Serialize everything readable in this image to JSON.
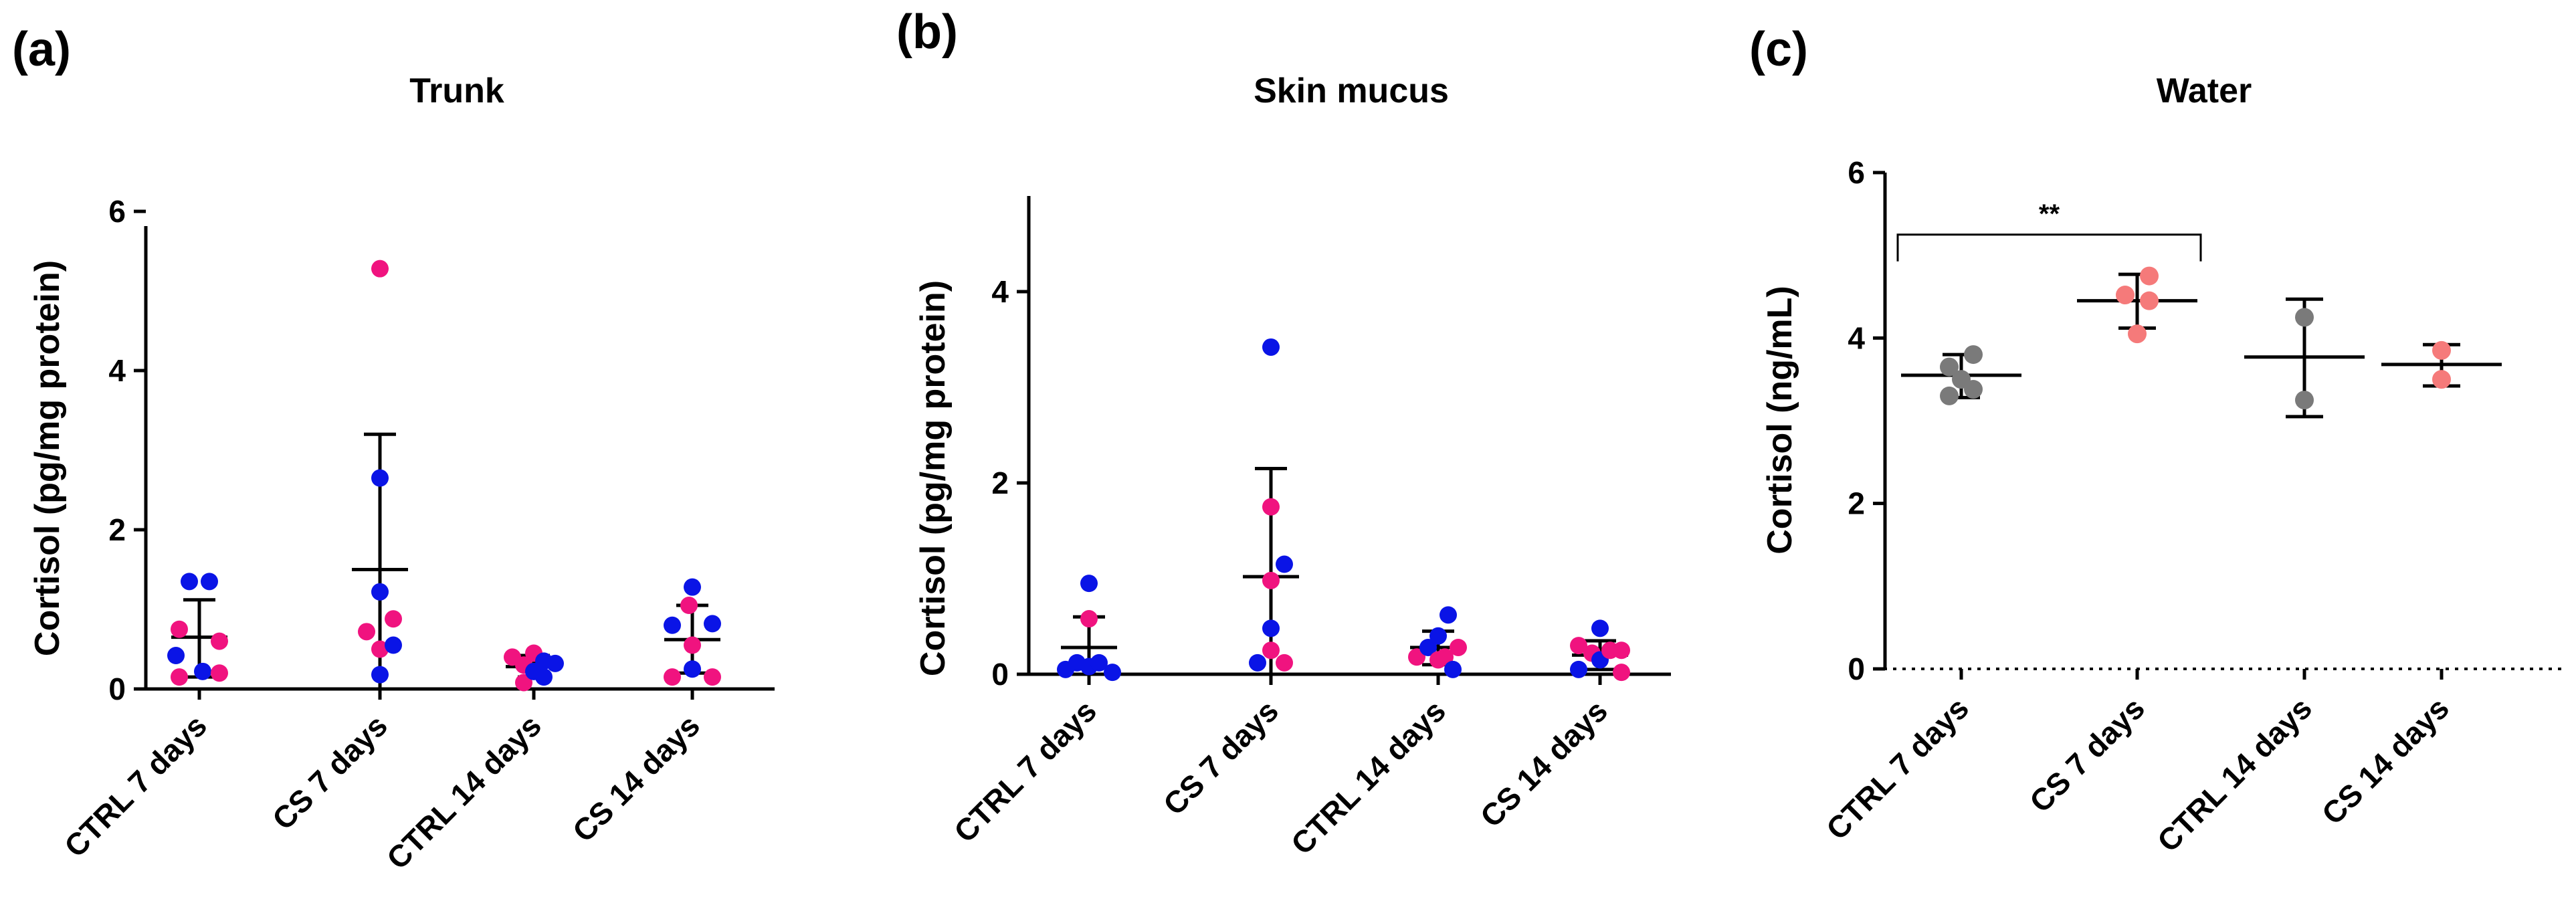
{
  "colors": {
    "blue": "#0a14e6",
    "magenta": "#f0137f",
    "gray": "#7a7a7a",
    "salmon": "#f57a7a",
    "axis": "#000000"
  },
  "chart_data": [
    {
      "type": "scatter",
      "panel_label": "(a)",
      "title": "Trunk",
      "xlabel": "",
      "ylabel": "Cortisol (pg/mg protein)",
      "ylim": [
        0,
        6
      ],
      "yticks": [
        0,
        2,
        4,
        6
      ],
      "yticks_text": [
        "0",
        "2",
        "4",
        "6"
      ],
      "categories": [
        "CTRL 7 days",
        "CS 7 days",
        "CTRL 14 days",
        "CS 14 days"
      ],
      "summary": [
        {
          "mean": 0.65,
          "sd_low": 0.15,
          "sd_high": 1.12
        },
        {
          "mean": 1.5,
          "sd_low": 0.0,
          "sd_high": 3.2
        },
        {
          "mean": 0.28,
          "sd_low": 0.15,
          "sd_high": 0.42
        },
        {
          "mean": 0.62,
          "sd_low": 0.2,
          "sd_high": 1.05
        }
      ],
      "points": [
        {
          "cat": 0,
          "dx": -0.35,
          "y": 0.42,
          "color": "blue"
        },
        {
          "cat": 0,
          "dx": -0.3,
          "y": 0.15,
          "color": "magenta"
        },
        {
          "cat": 0,
          "dx": -0.3,
          "y": 0.75,
          "color": "magenta"
        },
        {
          "cat": 0,
          "dx": -0.15,
          "y": 1.35,
          "color": "blue"
        },
        {
          "cat": 0,
          "dx": 0.05,
          "y": 0.22,
          "color": "blue"
        },
        {
          "cat": 0,
          "dx": 0.15,
          "y": 1.35,
          "color": "blue"
        },
        {
          "cat": 0,
          "dx": 0.3,
          "y": 0.6,
          "color": "magenta"
        },
        {
          "cat": 0,
          "dx": 0.3,
          "y": 0.2,
          "color": "magenta"
        },
        {
          "cat": 1,
          "dx": -0.2,
          "y": 0.72,
          "color": "magenta"
        },
        {
          "cat": 1,
          "dx": 0.0,
          "y": 5.28,
          "color": "magenta"
        },
        {
          "cat": 1,
          "dx": 0.0,
          "y": 2.65,
          "color": "blue"
        },
        {
          "cat": 1,
          "dx": 0.0,
          "y": 1.22,
          "color": "blue"
        },
        {
          "cat": 1,
          "dx": 0.0,
          "y": 0.5,
          "color": "magenta"
        },
        {
          "cat": 1,
          "dx": 0.0,
          "y": 0.18,
          "color": "blue"
        },
        {
          "cat": 1,
          "dx": 0.2,
          "y": 0.88,
          "color": "magenta"
        },
        {
          "cat": 1,
          "dx": 0.2,
          "y": 0.55,
          "color": "blue"
        },
        {
          "cat": 2,
          "dx": -0.32,
          "y": 0.4,
          "color": "magenta"
        },
        {
          "cat": 2,
          "dx": -0.15,
          "y": 0.3,
          "color": "magenta"
        },
        {
          "cat": 2,
          "dx": -0.15,
          "y": 0.08,
          "color": "magenta"
        },
        {
          "cat": 2,
          "dx": 0.0,
          "y": 0.45,
          "color": "magenta"
        },
        {
          "cat": 2,
          "dx": 0.0,
          "y": 0.22,
          "color": "blue"
        },
        {
          "cat": 2,
          "dx": 0.15,
          "y": 0.35,
          "color": "blue"
        },
        {
          "cat": 2,
          "dx": 0.15,
          "y": 0.15,
          "color": "blue"
        },
        {
          "cat": 2,
          "dx": 0.32,
          "y": 0.32,
          "color": "blue"
        },
        {
          "cat": 3,
          "dx": -0.3,
          "y": 0.8,
          "color": "blue"
        },
        {
          "cat": 3,
          "dx": -0.3,
          "y": 0.15,
          "color": "magenta"
        },
        {
          "cat": 3,
          "dx": -0.05,
          "y": 1.05,
          "color": "magenta"
        },
        {
          "cat": 3,
          "dx": 0.0,
          "y": 1.28,
          "color": "blue"
        },
        {
          "cat": 3,
          "dx": 0.0,
          "y": 0.55,
          "color": "magenta"
        },
        {
          "cat": 3,
          "dx": 0.0,
          "y": 0.25,
          "color": "blue"
        },
        {
          "cat": 3,
          "dx": 0.3,
          "y": 0.82,
          "color": "blue"
        },
        {
          "cat": 3,
          "dx": 0.3,
          "y": 0.15,
          "color": "magenta"
        }
      ]
    },
    {
      "type": "scatter",
      "panel_label": "(b)",
      "title": "Skin mucus",
      "xlabel": "",
      "ylabel": "Cortisol (pg/mg protein)",
      "ylim": [
        0,
        5
      ],
      "yticks": [
        0,
        2,
        4
      ],
      "yticks_text": [
        "0",
        "2",
        "4"
      ],
      "categories": [
        "CTRL 7 days",
        "CS 7 days",
        "CTRL 14 days",
        "CS 14 days"
      ],
      "summary": [
        {
          "mean": 0.28,
          "sd_low": 0.0,
          "sd_high": 0.6
        },
        {
          "mean": 1.02,
          "sd_low": 0.0,
          "sd_high": 2.15
        },
        {
          "mean": 0.28,
          "sd_low": 0.1,
          "sd_high": 0.45
        },
        {
          "mean": 0.2,
          "sd_low": 0.05,
          "sd_high": 0.35
        }
      ],
      "points": [
        {
          "cat": 0,
          "dx": -0.35,
          "y": 0.05,
          "color": "blue"
        },
        {
          "cat": 0,
          "dx": -0.18,
          "y": 0.12,
          "color": "blue"
        },
        {
          "cat": 0,
          "dx": 0.0,
          "y": 0.95,
          "color": "blue"
        },
        {
          "cat": 0,
          "dx": 0.0,
          "y": 0.58,
          "color": "magenta"
        },
        {
          "cat": 0,
          "dx": 0.0,
          "y": 0.08,
          "color": "blue"
        },
        {
          "cat": 0,
          "dx": 0.15,
          "y": 0.12,
          "color": "blue"
        },
        {
          "cat": 0,
          "dx": 0.35,
          "y": 0.02,
          "color": "blue"
        },
        {
          "cat": 1,
          "dx": -0.2,
          "y": 0.12,
          "color": "blue"
        },
        {
          "cat": 1,
          "dx": 0.0,
          "y": 3.42,
          "color": "blue"
        },
        {
          "cat": 1,
          "dx": 0.0,
          "y": 1.75,
          "color": "magenta"
        },
        {
          "cat": 1,
          "dx": 0.0,
          "y": 0.98,
          "color": "magenta"
        },
        {
          "cat": 1,
          "dx": 0.0,
          "y": 0.48,
          "color": "blue"
        },
        {
          "cat": 1,
          "dx": 0.0,
          "y": 0.25,
          "color": "magenta"
        },
        {
          "cat": 1,
          "dx": 0.2,
          "y": 1.15,
          "color": "blue"
        },
        {
          "cat": 1,
          "dx": 0.2,
          "y": 0.12,
          "color": "magenta"
        },
        {
          "cat": 2,
          "dx": -0.32,
          "y": 0.18,
          "color": "magenta"
        },
        {
          "cat": 2,
          "dx": -0.15,
          "y": 0.28,
          "color": "blue"
        },
        {
          "cat": 2,
          "dx": 0.0,
          "y": 0.4,
          "color": "blue"
        },
        {
          "cat": 2,
          "dx": 0.0,
          "y": 0.15,
          "color": "magenta"
        },
        {
          "cat": 2,
          "dx": 0.1,
          "y": 0.18,
          "color": "magenta"
        },
        {
          "cat": 2,
          "dx": 0.15,
          "y": 0.62,
          "color": "blue"
        },
        {
          "cat": 2,
          "dx": 0.22,
          "y": 0.05,
          "color": "blue"
        },
        {
          "cat": 2,
          "dx": 0.3,
          "y": 0.28,
          "color": "magenta"
        },
        {
          "cat": 3,
          "dx": -0.32,
          "y": 0.3,
          "color": "magenta"
        },
        {
          "cat": 3,
          "dx": -0.32,
          "y": 0.05,
          "color": "blue"
        },
        {
          "cat": 3,
          "dx": -0.12,
          "y": 0.22,
          "color": "magenta"
        },
        {
          "cat": 3,
          "dx": 0.0,
          "y": 0.48,
          "color": "blue"
        },
        {
          "cat": 3,
          "dx": 0.0,
          "y": 0.15,
          "color": "blue"
        },
        {
          "cat": 3,
          "dx": 0.15,
          "y": 0.25,
          "color": "magenta"
        },
        {
          "cat": 3,
          "dx": 0.32,
          "y": 0.25,
          "color": "magenta"
        },
        {
          "cat": 3,
          "dx": 0.32,
          "y": 0.02,
          "color": "magenta"
        }
      ]
    },
    {
      "type": "scatter",
      "panel_label": "(c)",
      "title": "Water",
      "xlabel": "",
      "ylabel": "Cortisol (ng/mL)",
      "ylim": [
        0,
        6
      ],
      "yticks": [
        0,
        2,
        4,
        6
      ],
      "yticks_text": [
        "0",
        "2",
        "4",
        "6"
      ],
      "categories": [
        "CTRL 7 days",
        "CS 7 days",
        "CTRL 14 days",
        "CS 14 days"
      ],
      "summary": [
        {
          "mean": 3.55,
          "sd_low": 3.28,
          "sd_high": 3.8
        },
        {
          "mean": 4.45,
          "sd_low": 4.12,
          "sd_high": 4.77
        },
        {
          "mean": 3.77,
          "sd_low": 3.05,
          "sd_high": 4.47
        },
        {
          "mean": 3.68,
          "sd_low": 3.42,
          "sd_high": 3.92
        }
      ],
      "points": [
        {
          "cat": 0,
          "dx": -0.2,
          "y": 3.65,
          "color": "gray"
        },
        {
          "cat": 0,
          "dx": -0.2,
          "y": 3.3,
          "color": "gray"
        },
        {
          "cat": 0,
          "dx": 0.0,
          "y": 3.5,
          "color": "gray"
        },
        {
          "cat": 0,
          "dx": 0.2,
          "y": 3.8,
          "color": "gray"
        },
        {
          "cat": 0,
          "dx": 0.2,
          "y": 3.38,
          "color": "gray"
        },
        {
          "cat": 1,
          "dx": -0.2,
          "y": 4.52,
          "color": "salmon"
        },
        {
          "cat": 1,
          "dx": 0.0,
          "y": 4.05,
          "color": "salmon"
        },
        {
          "cat": 1,
          "dx": 0.2,
          "y": 4.75,
          "color": "salmon"
        },
        {
          "cat": 1,
          "dx": 0.2,
          "y": 4.45,
          "color": "salmon"
        },
        {
          "cat": 2,
          "dx": 0.0,
          "y": 4.25,
          "color": "gray"
        },
        {
          "cat": 2,
          "dx": 0.0,
          "y": 3.25,
          "color": "gray"
        },
        {
          "cat": 3,
          "dx": 0.0,
          "y": 3.85,
          "color": "salmon"
        },
        {
          "cat": 3,
          "dx": 0.0,
          "y": 3.5,
          "color": "salmon"
        }
      ],
      "annotation": {
        "text": "**",
        "from_cat": 0,
        "to_cat": 1,
        "y": 5.25
      }
    }
  ]
}
